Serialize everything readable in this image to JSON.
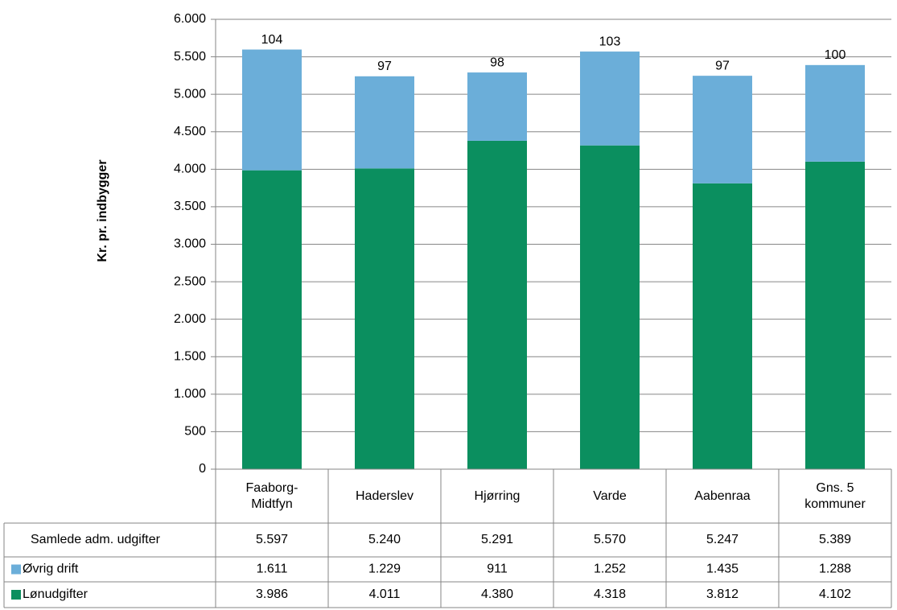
{
  "chart_data": {
    "type": "stacked_bar",
    "y_axis_label": "Kr. pr. indbygger",
    "categories": [
      "Faaborg-\nMidtfyn",
      "Haderslev",
      "Hjørring",
      "Varde",
      "Aabenraa",
      "Gns. 5\nkommuner"
    ],
    "series": [
      {
        "name": "Lønudgifter",
        "color": "#0b8f5f",
        "values": [
          3986,
          4011,
          4380,
          4318,
          3812,
          4102
        ],
        "value_labels": [
          "3.986",
          "4.011",
          "4.380",
          "4.318",
          "3.812",
          "4.102"
        ]
      },
      {
        "name": "Øvrig drift",
        "color": "#6baed9",
        "values": [
          1611,
          1229,
          911,
          1252,
          1435,
          1288
        ],
        "value_labels": [
          "1.611",
          "1.229",
          "911",
          "1.252",
          "1.435",
          "1.288"
        ]
      }
    ],
    "totals": {
      "name": "Samlede adm. udgifter",
      "values": [
        5597,
        5240,
        5291,
        5570,
        5247,
        5389
      ],
      "value_labels": [
        "5.597",
        "5.240",
        "5.291",
        "5.570",
        "5.247",
        "5.389"
      ]
    },
    "top_labels": [
      104,
      97,
      98,
      103,
      97,
      100
    ],
    "ylim": [
      0,
      6000
    ],
    "yticks": [
      0,
      500,
      {
        "value": 1000,
        "label": "1.000"
      },
      {
        "value": 1500,
        "label": "1.500"
      },
      {
        "value": 2000,
        "label": "2.000"
      },
      {
        "value": 2500,
        "label": "2.500"
      },
      {
        "value": 3000,
        "label": "3.000"
      },
      {
        "value": 3500,
        "label": "3.500"
      },
      {
        "value": 4000,
        "label": "4.000"
      },
      {
        "value": 4500,
        "label": "4.500"
      },
      {
        "value": 5000,
        "label": "5.000"
      },
      {
        "value": 5500,
        "label": "5.500"
      },
      {
        "value": 6000,
        "label": "6.000"
      }
    ],
    "grid": true
  }
}
